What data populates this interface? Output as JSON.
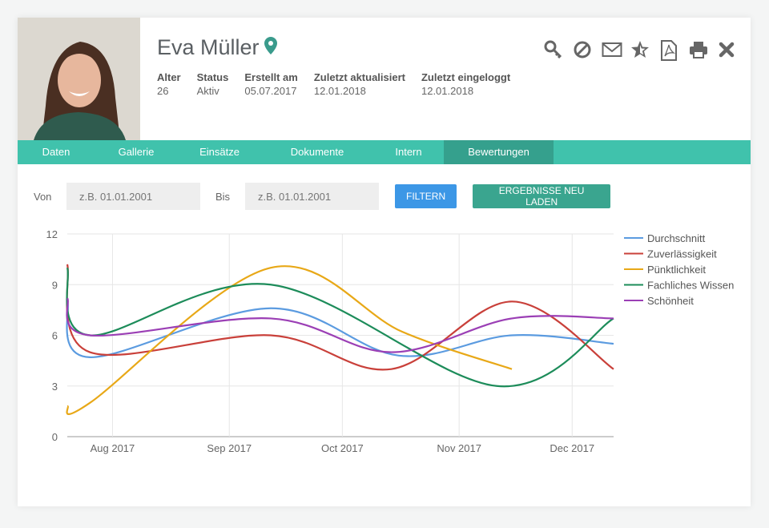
{
  "profile": {
    "name": "Eva Müller",
    "meta": [
      {
        "label": "Alter",
        "value": "26"
      },
      {
        "label": "Status",
        "value": "Aktiv"
      },
      {
        "label": "Erstellt am",
        "value": "05.07.2017"
      },
      {
        "label": "Zuletzt aktualisiert",
        "value": "12.01.2018"
      },
      {
        "label": "Zuletzt eingeloggt",
        "value": "12.01.2018"
      }
    ]
  },
  "actions": [
    "key-icon",
    "block-icon",
    "mail-icon",
    "star-icon",
    "pdf-icon",
    "print-icon",
    "close-icon"
  ],
  "tabs": [
    {
      "label": "Daten"
    },
    {
      "label": "Gallerie"
    },
    {
      "label": "Einsätze"
    },
    {
      "label": "Dokumente"
    },
    {
      "label": "Intern"
    },
    {
      "label": "Bewertungen",
      "active": true
    }
  ],
  "filter": {
    "from_label": "Von",
    "to_label": "Bis",
    "placeholder": "z.B. 01.01.2001",
    "filter_button": "FILTERN",
    "reload_button": "ERGEBNISSE NEU LADEN"
  },
  "colors": {
    "accent": "#40c2ac",
    "accent_dark": "#35a08d",
    "blue": "#3c97e6",
    "reload": "#3aa58f"
  },
  "chart_data": {
    "type": "line",
    "ylim": [
      0,
      12
    ],
    "yticks": [
      0,
      3,
      6,
      9,
      12
    ],
    "xrange": [
      "2017-07-20",
      "2017-12-12"
    ],
    "xticks": [
      {
        "date": "2017-08-01",
        "label": "Aug 2017"
      },
      {
        "date": "2017-09-01",
        "label": "Sep 2017"
      },
      {
        "date": "2017-10-01",
        "label": "Oct 2017"
      },
      {
        "date": "2017-11-01",
        "label": "Nov 2017"
      },
      {
        "date": "2017-12-01",
        "label": "Dec 2017"
      }
    ],
    "legend_position": "right",
    "series": [
      {
        "name": "Durchschnitt",
        "color": "#5b9be0",
        "points": [
          [
            "2017-07-20",
            8
          ],
          [
            "2017-07-26",
            4.7
          ],
          [
            "2017-09-12",
            7.6
          ],
          [
            "2017-10-16",
            4.8
          ],
          [
            "2017-11-15",
            6
          ],
          [
            "2017-12-12",
            5.5
          ]
        ]
      },
      {
        "name": "Zuverlässigkeit",
        "color": "#c9403a",
        "points": [
          [
            "2017-07-20",
            10.2
          ],
          [
            "2017-07-26",
            5
          ],
          [
            "2017-09-12",
            6
          ],
          [
            "2017-10-14",
            4
          ],
          [
            "2017-11-15",
            8
          ],
          [
            "2017-12-12",
            4
          ]
        ]
      },
      {
        "name": "Pünktlichkeit",
        "color": "#e8a817",
        "points": [
          [
            "2017-07-20",
            1.8
          ],
          [
            "2017-07-26",
            2
          ],
          [
            "2017-09-12",
            10
          ],
          [
            "2017-10-17",
            6.2
          ],
          [
            "2017-11-15",
            4
          ]
        ]
      },
      {
        "name": "Fachliches Wissen",
        "color": "#1d8c5a",
        "points": [
          [
            "2017-07-20",
            10
          ],
          [
            "2017-07-26",
            6
          ],
          [
            "2017-09-12",
            9
          ],
          [
            "2017-11-11",
            3
          ],
          [
            "2017-12-12",
            7
          ]
        ]
      },
      {
        "name": "Schönheit",
        "color": "#9b3fb5",
        "points": [
          [
            "2017-07-20",
            8.2
          ],
          [
            "2017-07-26",
            6
          ],
          [
            "2017-09-12",
            7
          ],
          [
            "2017-10-14",
            5
          ],
          [
            "2017-11-15",
            7
          ],
          [
            "2017-12-12",
            7
          ]
        ]
      }
    ]
  }
}
